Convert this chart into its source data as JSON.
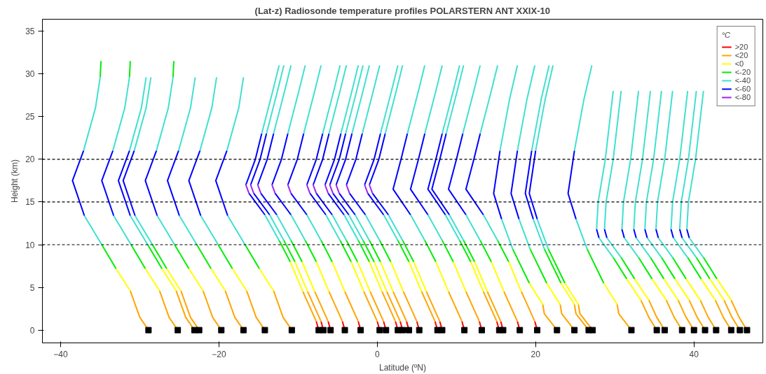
{
  "chart_data": {
    "type": "line",
    "title": "(Lat-z) Radiosonde temperature profiles POLARSTERN ANT XXIX-10",
    "xlabel": "Latitude (ºN)",
    "ylabel": "Height (km)",
    "legend_title": "°C",
    "legend": "top right",
    "grid": false,
    "xlim": [
      -42.3,
      48.7
    ],
    "ylim": [
      -1.5,
      36.4
    ],
    "xticks": [
      -40,
      -20,
      0,
      20,
      40
    ],
    "yticks": [
      0,
      5,
      10,
      15,
      20,
      25,
      30,
      35
    ],
    "ref_lines": [
      {
        "axis": "y",
        "value": 10,
        "color": "#000000",
        "line_style": "dashed"
      },
      {
        "axis": "y",
        "value": 15,
        "color": "#000000",
        "line_style": "dashed"
      },
      {
        "axis": "y",
        "value": 20,
        "color": "#000000",
        "line_style": "dashed"
      }
    ],
    "series": [
      {
        "name": ">20",
        "color": "#ff0000",
        "x": [
          -7.4,
          -7.7,
          null,
          -6.8,
          -7.1,
          null,
          -5.9,
          -6.2,
          null,
          -4.1,
          -4.4,
          null,
          -2.1,
          -2.4,
          null,
          0.3,
          0.0,
          null,
          1.1,
          0.8,
          null,
          2.6,
          2.3,
          null,
          3.2,
          2.9,
          null,
          4.0,
          3.7,
          null,
          5.3,
          5.0,
          null,
          7.6,
          7.3,
          null,
          8.2,
          7.9,
          null,
          11.0,
          10.7,
          null,
          13.2,
          12.9,
          null,
          15.4,
          15.1,
          null,
          15.9,
          15.6,
          null,
          18.0,
          17.7,
          null,
          20.2,
          19.9
        ],
        "values": [
          0,
          1,
          null,
          0,
          1,
          null,
          0,
          1,
          null,
          0,
          1,
          null,
          0,
          1,
          null,
          0,
          1,
          null,
          0,
          1,
          null,
          0,
          1,
          null,
          0,
          1,
          null,
          0,
          1,
          null,
          0,
          1,
          null,
          0,
          1,
          null,
          0,
          1,
          null,
          0,
          1,
          null,
          0,
          1,
          null,
          0,
          1,
          null,
          0,
          1,
          null,
          0,
          1,
          null,
          0,
          1
        ]
      },
      {
        "name": "<20",
        "color": "#ffa500",
        "x": [
          -28.9,
          -30.0,
          -31.2,
          null,
          -25.2,
          -26.3,
          -27.5,
          null,
          -23.1,
          -24.2,
          -25.4,
          null,
          -22.5,
          -23.6,
          -24.8,
          null,
          -19.7,
          -20.8,
          -22.0,
          null,
          -16.9,
          -18.0,
          -19.2,
          null,
          -14.2,
          -15.3,
          -16.5,
          null,
          -10.8,
          -11.9,
          -13.1,
          null,
          -7.7,
          -9.4,
          null,
          -7.1,
          -8.8,
          null,
          -6.2,
          -7.9,
          null,
          -4.4,
          -6.1,
          null,
          -2.4,
          -4.1,
          null,
          0.0,
          -1.7,
          null,
          0.8,
          -0.9,
          null,
          2.3,
          0.6,
          null,
          2.9,
          1.2,
          null,
          3.7,
          2.0,
          null,
          5.0,
          3.3,
          null,
          7.3,
          5.6,
          null,
          7.9,
          6.2,
          null,
          10.7,
          9.0,
          null,
          12.9,
          11.2,
          null,
          15.1,
          13.4,
          null,
          15.6,
          13.9,
          null,
          17.7,
          16.0,
          null,
          19.9,
          18.2,
          null,
          22.7,
          21.1,
          20.9,
          null,
          24.9,
          23.3,
          23.1,
          null,
          26.7,
          25.1,
          24.9,
          null,
          27.2,
          25.6,
          25.4,
          null,
          32.1,
          30.5,
          30.3,
          null,
          35.3,
          34.3,
          33.3,
          null,
          36.3,
          35.3,
          34.3,
          null,
          38.5,
          37.5,
          36.5,
          null,
          40.0,
          39.0,
          38.0,
          null,
          41.4,
          40.4,
          39.4,
          null,
          42.8,
          41.8,
          40.8,
          null,
          44.7,
          43.7,
          42.7,
          null,
          45.8,
          44.8,
          43.8,
          null,
          46.7,
          45.7,
          44.7
        ],
        "values": [
          0,
          1.5,
          4.6,
          null,
          0,
          1.5,
          4.6,
          null,
          0,
          1.5,
          4.6,
          null,
          0,
          1.5,
          4.6,
          null,
          0,
          1.5,
          4.6,
          null,
          0,
          1.5,
          4.6,
          null,
          0,
          1.5,
          4.6,
          null,
          0,
          1.5,
          4.6,
          null,
          1,
          4.5,
          null,
          1,
          4.5,
          null,
          1,
          4.5,
          null,
          1,
          4.5,
          null,
          1,
          4.5,
          null,
          1,
          4.5,
          null,
          1,
          4.5,
          null,
          1,
          4.5,
          null,
          1,
          4.5,
          null,
          1,
          4.5,
          null,
          1,
          4.5,
          null,
          1,
          4.5,
          null,
          1,
          4.5,
          null,
          1,
          4.5,
          null,
          1,
          4.5,
          null,
          1,
          4.5,
          null,
          1,
          4.5,
          null,
          1,
          4.5,
          null,
          1,
          4.5,
          null,
          0,
          1.9,
          3,
          null,
          0,
          1.9,
          3,
          null,
          0,
          1.9,
          3,
          null,
          0,
          1.9,
          3,
          null,
          0,
          1.9,
          3,
          null,
          0,
          1.5,
          3.5,
          null,
          0,
          1.5,
          3.5,
          null,
          0,
          1.5,
          3.5,
          null,
          0,
          1.5,
          3.5,
          null,
          0,
          1.5,
          3.5,
          null,
          0,
          1.5,
          3.5,
          null,
          0,
          1.5,
          3.5,
          null,
          0,
          1.5,
          3.5,
          null,
          0,
          1.5,
          3.5
        ]
      },
      {
        "name": "<0",
        "color": "#ffff00",
        "x": [
          -31.2,
          -33.0,
          null,
          -27.5,
          -29.3,
          null,
          -25.4,
          -27.2,
          null,
          -24.8,
          -26.6,
          null,
          -22.0,
          -23.8,
          null,
          -19.2,
          -21.0,
          null,
          -16.5,
          -18.3,
          null,
          -13.1,
          -14.9,
          null,
          -9.4,
          -11.0,
          null,
          -8.8,
          -10.4,
          null,
          -7.9,
          -9.5,
          null,
          -6.1,
          -7.7,
          null,
          -4.1,
          -5.7,
          null,
          -1.7,
          -3.3,
          null,
          -0.9,
          -2.5,
          null,
          0.6,
          -1.0,
          null,
          1.2,
          -0.4,
          null,
          2.0,
          0.4,
          null,
          3.3,
          1.7,
          null,
          5.6,
          4.0,
          null,
          6.2,
          4.6,
          null,
          9.0,
          7.4,
          null,
          11.2,
          9.6,
          null,
          13.4,
          11.8,
          null,
          13.9,
          12.3,
          null,
          16.0,
          14.4,
          null,
          18.2,
          16.6,
          null,
          20.9,
          19.2,
          null,
          23.1,
          21.4,
          null,
          24.9,
          23.2,
          null,
          25.4,
          23.7,
          null,
          30.3,
          28.6,
          null,
          33.3,
          31.5,
          null,
          34.3,
          32.5,
          null,
          36.5,
          34.7,
          null,
          38.0,
          36.2,
          null,
          39.4,
          37.6,
          null,
          40.8,
          39.0,
          null,
          42.7,
          40.9,
          null,
          43.8,
          42.0,
          null,
          44.7,
          42.9
        ],
        "values": [
          4.6,
          7.2,
          null,
          4.6,
          7.2,
          null,
          4.6,
          7.2,
          null,
          4.6,
          7.2,
          null,
          4.6,
          7.2,
          null,
          4.6,
          7.2,
          null,
          4.6,
          7.2,
          null,
          4.6,
          7.2,
          null,
          4.5,
          8,
          null,
          4.5,
          8,
          null,
          4.5,
          8,
          null,
          4.5,
          8,
          null,
          4.5,
          8,
          null,
          4.5,
          8,
          null,
          4.5,
          8,
          null,
          4.5,
          8,
          null,
          4.5,
          8,
          null,
          4.5,
          8,
          null,
          4.5,
          8,
          null,
          4.5,
          8,
          null,
          4.5,
          8,
          null,
          4.5,
          8,
          null,
          4.5,
          8,
          null,
          4.5,
          8,
          null,
          4.5,
          8,
          null,
          4.5,
          8,
          null,
          4.5,
          8,
          null,
          3,
          5.5,
          null,
          3,
          5.5,
          null,
          3,
          5.5,
          null,
          3,
          5.5,
          null,
          3,
          5.5,
          null,
          3.5,
          6,
          null,
          3.5,
          6,
          null,
          3.5,
          6,
          null,
          3.5,
          6,
          null,
          3.5,
          6,
          null,
          3.5,
          6,
          null,
          3.5,
          6,
          null,
          3.5,
          6,
          null,
          3.5,
          6
        ]
      },
      {
        "name": "<-20",
        "color": "#00ee00",
        "x": [
          -33.0,
          -34.8,
          null,
          -29.3,
          -31.1,
          null,
          -27.2,
          -29.0,
          null,
          -26.6,
          -28.4,
          null,
          -23.8,
          -25.6,
          null,
          -21.0,
          -22.8,
          null,
          -18.3,
          -20.1,
          null,
          -14.9,
          -16.7,
          null,
          -35.0,
          -34.9,
          null,
          -31.3,
          -31.2,
          null,
          -25.8,
          -25.7,
          null,
          -11.0,
          -12.4,
          null,
          -10.4,
          -11.8,
          null,
          -9.5,
          -10.9,
          null,
          -7.7,
          -9.1,
          null,
          -5.7,
          -7.1,
          null,
          -3.3,
          -4.7,
          null,
          -2.5,
          -3.9,
          null,
          -1.0,
          -2.4,
          null,
          -0.4,
          -1.8,
          null,
          0.4,
          -1.0,
          null,
          1.7,
          0.3,
          null,
          4.0,
          2.6,
          null,
          4.6,
          3.2,
          null,
          7.4,
          6.0,
          null,
          9.6,
          8.2,
          null,
          11.8,
          10.4,
          null,
          12.3,
          10.9,
          null,
          14.4,
          13.0,
          null,
          16.6,
          15.2,
          null,
          19.2,
          17.1,
          null,
          21.4,
          19.3,
          null,
          23.2,
          21.1,
          null,
          23.7,
          21.6,
          null,
          28.6,
          26.5,
          null,
          31.5,
          29.8,
          null,
          32.5,
          30.8,
          null,
          34.7,
          33.0,
          null,
          36.2,
          34.5,
          null,
          37.6,
          35.9,
          null,
          39.0,
          37.3,
          null,
          40.9,
          39.2,
          null,
          42.0,
          40.3,
          null,
          42.9,
          41.2
        ],
        "values": [
          7.2,
          10,
          null,
          7.2,
          10,
          null,
          7.2,
          10,
          null,
          7.2,
          10,
          null,
          7.2,
          10,
          null,
          7.2,
          10,
          null,
          7.2,
          10,
          null,
          7.2,
          10,
          null,
          29.6,
          31.5,
          null,
          29.6,
          31.5,
          null,
          29.6,
          31.5,
          null,
          8,
          10.5,
          null,
          8,
          10.5,
          null,
          8,
          10.5,
          null,
          8,
          10.5,
          null,
          8,
          10.5,
          null,
          8,
          10.5,
          null,
          8,
          10.5,
          null,
          8,
          10.5,
          null,
          8,
          10.5,
          null,
          8,
          10.5,
          null,
          8,
          10.5,
          null,
          8,
          10.5,
          null,
          8,
          10.5,
          null,
          8,
          10.5,
          null,
          8,
          10.5,
          null,
          8,
          10.5,
          null,
          8,
          10.5,
          null,
          8,
          10.5,
          null,
          8,
          10.5,
          null,
          5.5,
          9.5,
          null,
          5.5,
          9.5,
          null,
          5.5,
          9.5,
          null,
          5.5,
          9.5,
          null,
          5.5,
          9.5,
          null,
          6,
          8.5,
          null,
          6,
          8.5,
          null,
          6,
          8.5,
          null,
          6,
          8.5,
          null,
          6,
          8.5,
          null,
          6,
          8.5,
          null,
          6,
          8.5,
          null,
          6,
          8.5,
          null,
          6,
          8.5
        ]
      },
      {
        "name": "<-40",
        "color": "#40e0d0",
        "x": [
          -34.8,
          -37.0,
          null,
          -31.1,
          -33.3,
          null,
          -29.0,
          -31.2,
          null,
          -28.4,
          -30.6,
          null,
          -25.6,
          -27.8,
          null,
          -22.8,
          -25.0,
          null,
          -20.1,
          -22.3,
          null,
          -16.7,
          -18.9,
          null,
          -37.1,
          -35.6,
          -35.0,
          null,
          -33.4,
          -31.9,
          -31.3,
          null,
          -31.3,
          -29.8,
          -29.2,
          null,
          -30.7,
          -29.2,
          -28.6,
          null,
          -27.9,
          -26.4,
          -25.8,
          null,
          -25.1,
          -23.6,
          -23.0,
          null,
          -22.4,
          -20.9,
          -20.3,
          null,
          -19.0,
          -17.5,
          -16.9,
          null,
          -12.4,
          -14.2,
          null,
          -11.8,
          -13.6,
          null,
          -10.9,
          -12.7,
          null,
          -9.1,
          -10.9,
          null,
          -7.1,
          -8.9,
          null,
          -4.7,
          -6.5,
          null,
          -3.9,
          -5.7,
          null,
          -2.4,
          -4.2,
          null,
          -1.8,
          -3.6,
          null,
          -1.0,
          -2.8,
          null,
          0.3,
          -1.5,
          null,
          2.6,
          0.8,
          null,
          3.2,
          1.4,
          null,
          6.0,
          4.2,
          null,
          8.2,
          6.4,
          null,
          10.4,
          8.6,
          null,
          10.9,
          9.1,
          null,
          13.0,
          11.2,
          null,
          15.2,
          13.4,
          null,
          -14.6,
          -13.2,
          -12.4,
          null,
          -14.0,
          -12.6,
          -11.8,
          null,
          -13.1,
          -11.7,
          -10.9,
          null,
          -11.3,
          -9.9,
          -9.1,
          null,
          -9.3,
          -7.9,
          -7.1,
          null,
          -6.9,
          -5.5,
          -4.7,
          null,
          -6.1,
          -4.7,
          -3.9,
          null,
          -4.6,
          -3.2,
          -2.4,
          null,
          -4.0,
          -2.6,
          -1.8,
          null,
          -3.2,
          -1.8,
          -1.0,
          null,
          -1.9,
          -0.5,
          0.3,
          null,
          0.4,
          1.8,
          2.6,
          null,
          1.0,
          2.4,
          3.2,
          null,
          3.8,
          5.2,
          6.0,
          null,
          6.0,
          7.4,
          8.2,
          null,
          8.2,
          9.6,
          10.4,
          null,
          8.7,
          10.1,
          10.9,
          null,
          10.8,
          12.2,
          13.0,
          null,
          13.0,
          14.4,
          15.2,
          null,
          17.1,
          15.7,
          null,
          19.3,
          17.9,
          null,
          21.1,
          19.7,
          null,
          21.6,
          20.2,
          null,
          26.5,
          25.1,
          null,
          15.5,
          16.7,
          17.7,
          null,
          17.7,
          18.9,
          19.9,
          null,
          19.5,
          20.7,
          21.7,
          null,
          20.0,
          21.2,
          22.2,
          null,
          24.9,
          26.1,
          27.1,
          null,
          29.8,
          28.0,
          null,
          30.8,
          29.0,
          null,
          33.0,
          31.2,
          null,
          34.5,
          32.7,
          null,
          35.9,
          34.1,
          null,
          37.3,
          35.5,
          null,
          39.2,
          37.4,
          null,
          40.3,
          38.5,
          null,
          41.2,
          39.4,
          null,
          27.7,
          27.9,
          28.8,
          29.8,
          null,
          28.7,
          28.9,
          29.8,
          30.8,
          null,
          30.9,
          31.1,
          32.0,
          33.0,
          null,
          32.4,
          32.6,
          33.5,
          34.5,
          null,
          33.8,
          34.0,
          34.9,
          35.9,
          null,
          35.2,
          35.4,
          36.3,
          37.3,
          null,
          37.1,
          37.3,
          38.2,
          39.2,
          null,
          38.2,
          38.4,
          39.3,
          40.3,
          null,
          39.1,
          39.3,
          40.2,
          41.2
        ],
        "values": [
          10,
          13.4,
          null,
          10,
          13.4,
          null,
          10,
          13.4,
          null,
          10,
          13.4,
          null,
          10,
          13.4,
          null,
          10,
          13.4,
          null,
          10,
          13.4,
          null,
          10,
          13.4,
          null,
          21,
          26,
          29.6,
          null,
          21,
          26,
          29.6,
          null,
          21,
          26,
          29.6,
          null,
          21,
          26,
          29.6,
          null,
          21,
          26,
          29.6,
          null,
          21,
          26,
          29.6,
          null,
          21,
          26,
          29.6,
          null,
          21,
          26,
          29.6,
          null,
          10.5,
          13.5,
          null,
          10.5,
          13.5,
          null,
          10.5,
          13.5,
          null,
          10.5,
          13.5,
          null,
          10.5,
          13.5,
          null,
          10.5,
          13.5,
          null,
          10.5,
          13.5,
          null,
          10.5,
          13.5,
          null,
          10.5,
          13.5,
          null,
          10.5,
          13.5,
          null,
          10.5,
          13.5,
          null,
          10.5,
          13.5,
          null,
          10.5,
          13.5,
          null,
          10.5,
          13.5,
          null,
          10.5,
          13.5,
          null,
          10.5,
          13.5,
          null,
          10.5,
          13.5,
          null,
          10.5,
          13.5,
          null,
          10.5,
          13.5,
          null,
          23,
          28,
          31,
          null,
          23,
          28,
          31,
          null,
          23,
          28,
          31,
          null,
          23,
          28,
          31,
          null,
          23,
          28,
          31,
          null,
          23,
          28,
          31,
          null,
          23,
          28,
          31,
          null,
          23,
          28,
          31,
          null,
          23,
          28,
          31,
          null,
          23,
          28,
          31,
          null,
          23,
          28,
          31,
          null,
          23,
          28,
          31,
          null,
          23,
          28,
          31,
          null,
          23,
          28,
          31,
          null,
          23,
          28,
          31,
          null,
          23,
          28,
          31,
          null,
          23,
          28,
          31,
          null,
          23,
          28,
          31,
          null,
          23,
          28,
          31,
          null,
          9.5,
          13,
          null,
          9.5,
          13,
          null,
          9.5,
          13,
          null,
          9.5,
          13,
          null,
          9.5,
          13,
          null,
          21,
          27,
          31,
          null,
          21,
          27,
          31,
          null,
          21,
          27,
          31,
          null,
          21,
          27,
          31,
          null,
          21,
          27,
          31,
          null,
          8.5,
          10.8,
          null,
          8.5,
          10.8,
          null,
          8.5,
          10.8,
          null,
          8.5,
          10.8,
          null,
          8.5,
          10.8,
          null,
          8.5,
          10.8,
          null,
          8.5,
          10.8,
          null,
          8.5,
          10.8,
          null,
          8.5,
          10.8,
          null,
          11.8,
          15,
          20,
          28,
          null,
          11.8,
          15,
          20,
          28,
          null,
          11.8,
          15,
          20,
          28,
          null,
          11.8,
          15,
          20,
          28,
          null,
          11.8,
          15,
          20,
          28,
          null,
          11.8,
          15,
          20,
          28,
          null,
          11.8,
          15,
          20,
          28,
          null,
          11.8,
          15,
          20,
          28,
          null,
          11.8,
          15,
          20,
          28
        ]
      },
      {
        "name": "<-60",
        "color": "#0000ff",
        "x": [
          -37.0,
          -38.5,
          -37.1,
          null,
          -33.3,
          -34.8,
          -33.4,
          null,
          -31.2,
          -32.7,
          -31.3,
          null,
          -30.6,
          -32.1,
          -30.7,
          null,
          -27.8,
          -29.3,
          -27.9,
          null,
          -25.0,
          -26.5,
          -25.1,
          null,
          -22.3,
          -23.8,
          -22.4,
          null,
          -18.9,
          -20.4,
          -19.0,
          null,
          -14.2,
          -16.2,
          null,
          -13.6,
          -15.6,
          null,
          -12.7,
          -14.7,
          null,
          -10.9,
          -12.9,
          null,
          -8.9,
          -10.9,
          null,
          -6.5,
          -8.5,
          null,
          -5.7,
          -7.7,
          null,
          -4.2,
          -6.2,
          null,
          -3.6,
          -5.6,
          null,
          -2.8,
          -4.8,
          null,
          -1.5,
          -3.5,
          null,
          0.8,
          -1.2,
          null,
          1.4,
          -0.6,
          null,
          -16.6,
          -15.4,
          -14.6,
          null,
          -16.0,
          -14.8,
          -14.0,
          null,
          -15.1,
          -13.9,
          -13.1,
          null,
          -13.3,
          -12.1,
          -11.3,
          null,
          -11.3,
          -10.1,
          -9.3,
          null,
          -8.9,
          -7.7,
          -6.9,
          null,
          -8.1,
          -6.9,
          -6.1,
          null,
          -6.6,
          -5.4,
          -4.6,
          null,
          -6.0,
          -4.8,
          -4.0,
          null,
          -5.2,
          -4.0,
          -3.2,
          null,
          -3.9,
          -2.7,
          -1.9,
          null,
          -1.6,
          -0.4,
          0.4,
          null,
          -1.0,
          0.2,
          1.0,
          null,
          4.2,
          2.0,
          3.0,
          3.8,
          null,
          6.4,
          4.2,
          5.2,
          6.0,
          null,
          8.6,
          6.4,
          7.4,
          8.2,
          null,
          9.1,
          6.9,
          7.9,
          8.7,
          null,
          11.2,
          9.0,
          10.0,
          10.8,
          null,
          13.4,
          11.2,
          12.2,
          13.0,
          null,
          15.7,
          14.7,
          15.5,
          null,
          17.9,
          16.9,
          17.7,
          null,
          19.7,
          18.7,
          19.5,
          null,
          20.2,
          19.2,
          20.0,
          null,
          25.1,
          24.1,
          24.9,
          null,
          28.0,
          27.7,
          null,
          29.0,
          28.7,
          null,
          31.2,
          30.9,
          null,
          32.7,
          32.4,
          null,
          34.1,
          33.8,
          null,
          35.5,
          35.2,
          null,
          37.4,
          37.1,
          null,
          38.5,
          38.2,
          null,
          39.4,
          39.1
        ],
        "values": [
          13.4,
          17.5,
          21,
          null,
          13.4,
          17.5,
          21,
          null,
          13.4,
          17.5,
          21,
          null,
          13.4,
          17.5,
          21,
          null,
          13.4,
          17.5,
          21,
          null,
          13.4,
          17.5,
          21,
          null,
          13.4,
          17.5,
          21,
          null,
          13.4,
          17.5,
          21,
          null,
          13.5,
          16,
          null,
          13.5,
          16,
          null,
          13.5,
          16,
          null,
          13.5,
          16,
          null,
          13.5,
          16,
          null,
          13.5,
          16,
          null,
          13.5,
          16,
          null,
          13.5,
          16,
          null,
          13.5,
          16,
          null,
          13.5,
          16,
          null,
          13.5,
          16,
          null,
          13.5,
          16,
          null,
          13.5,
          16,
          null,
          17,
          20,
          23,
          null,
          17,
          20,
          23,
          null,
          17,
          20,
          23,
          null,
          17,
          20,
          23,
          null,
          17,
          20,
          23,
          null,
          17,
          20,
          23,
          null,
          17,
          20,
          23,
          null,
          17,
          20,
          23,
          null,
          17,
          20,
          23,
          null,
          17,
          20,
          23,
          null,
          17,
          20,
          23,
          null,
          17,
          20,
          23,
          null,
          17,
          20,
          23,
          null,
          13.5,
          16.5,
          20,
          23,
          null,
          13.5,
          16.5,
          20,
          23,
          null,
          13.5,
          16.5,
          20,
          23,
          null,
          13.5,
          16.5,
          20,
          23,
          null,
          13.5,
          16.5,
          20,
          23,
          null,
          13.5,
          16.5,
          20,
          23,
          null,
          13,
          16,
          21,
          null,
          13,
          16,
          21,
          null,
          13,
          16,
          21,
          null,
          13,
          16,
          21,
          null,
          13,
          16,
          21,
          null,
          10.8,
          11.8,
          null,
          10.8,
          11.8,
          null,
          10.8,
          11.8,
          null,
          10.8,
          11.8,
          null,
          10.8,
          11.8,
          null,
          10.8,
          11.8,
          null,
          10.8,
          11.8,
          null,
          10.8,
          11.8,
          null,
          10.8,
          11.8
        ]
      },
      {
        "name": "<-80",
        "color": "#a020f0",
        "x": [
          -16.2,
          -16.6,
          null,
          -15.6,
          -16.0,
          null,
          -14.7,
          -15.1,
          null,
          -12.9,
          -13.3,
          null,
          -10.9,
          -11.3,
          null,
          -8.5,
          -8.9,
          null,
          -7.7,
          -8.1,
          null,
          -6.2,
          -6.6,
          null,
          -5.6,
          -6.0,
          null,
          -4.8,
          -5.2,
          null,
          -3.5,
          -3.9,
          null,
          -1.2,
          -1.6,
          null,
          -0.6,
          -1.0
        ],
        "values": [
          16,
          17,
          null,
          16,
          17,
          null,
          16,
          17,
          null,
          16,
          17,
          null,
          16,
          17,
          null,
          16,
          17,
          null,
          16,
          17,
          null,
          16,
          17,
          null,
          16,
          17,
          null,
          16,
          17,
          null,
          16,
          17,
          null,
          16,
          17,
          null,
          16,
          17
        ]
      },
      {
        "color": "#000000",
        "type": "scatter",
        "marker": "square",
        "x": [
          -28.9,
          -25.2,
          -23.1,
          -22.5,
          -19.7,
          -16.9,
          -14.2,
          -10.8,
          -7.4,
          -6.8,
          -5.9,
          -4.1,
          -2.1,
          0.3,
          1.1,
          2.6,
          3.2,
          4.0,
          5.3,
          7.6,
          8.2,
          11.0,
          13.2,
          15.4,
          15.9,
          18.0,
          20.2,
          22.7,
          24.9,
          26.7,
          27.2,
          32.1,
          35.3,
          36.3,
          38.5,
          40.0,
          41.4,
          42.8,
          44.7,
          45.8,
          46.7
        ],
        "values": [
          0,
          0,
          0,
          0,
          0,
          0,
          0,
          0,
          0,
          0,
          0,
          0,
          0,
          0,
          0,
          0,
          0,
          0,
          0,
          0,
          0,
          0,
          0,
          0,
          0,
          0,
          0,
          0,
          0,
          0,
          0,
          0,
          0,
          0,
          0,
          0,
          0,
          0,
          0,
          0,
          0
        ]
      }
    ]
  }
}
